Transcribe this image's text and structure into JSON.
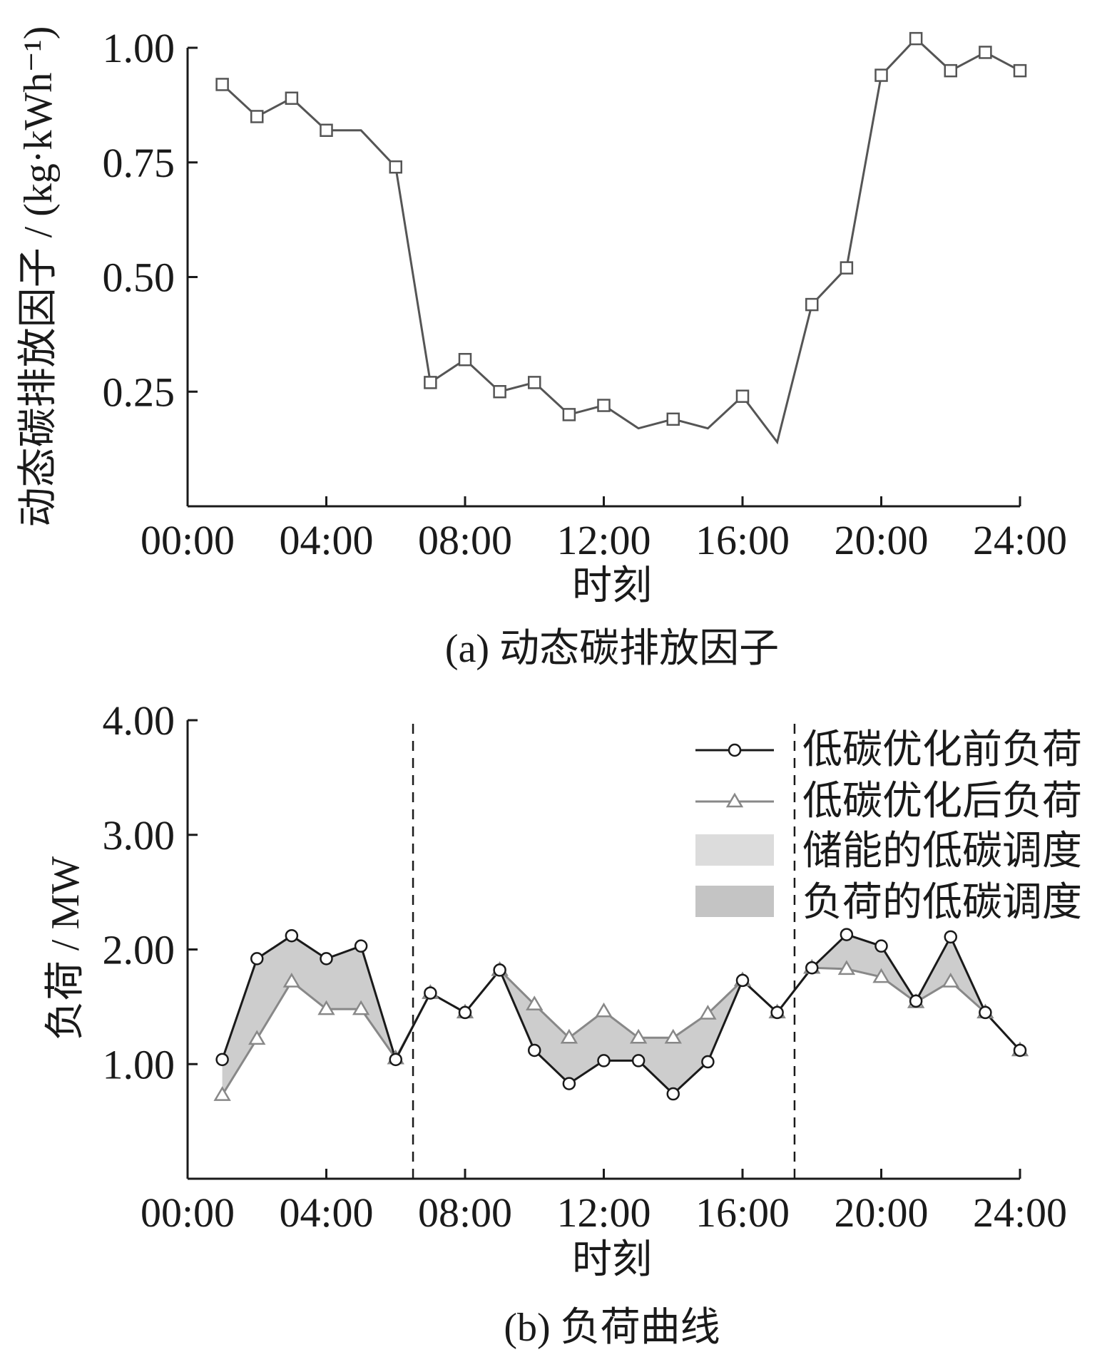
{
  "figure": {
    "panel_a_caption": "(a)  动态碳排放因子",
    "panel_b_caption": "(b)  负荷曲线"
  },
  "chart_data": [
    {
      "type": "line",
      "xlabel": "时刻",
      "ylabel": "动态碳排放因子 / (kg·kWh⁻¹)",
      "x_tick_labels": [
        "00:00",
        "04:00",
        "08:00",
        "12:00",
        "16:00",
        "20:00",
        "24:00"
      ],
      "y_tick_labels": [
        "0.25",
        "0.50",
        "0.75",
        "1.00"
      ],
      "xlim": [
        0,
        24
      ],
      "ylim": [
        0,
        1.0
      ],
      "grid": false,
      "series": [
        {
          "x": [
            1,
            2,
            3,
            4,
            5,
            6,
            7,
            8,
            9,
            10,
            11,
            12,
            13,
            14,
            15,
            16,
            17,
            18,
            19,
            20,
            21,
            22,
            23,
            24
          ],
          "values": [
            0.92,
            0.85,
            0.89,
            0.82,
            0.82,
            0.74,
            0.27,
            0.32,
            0.25,
            0.27,
            0.2,
            0.22,
            0.17,
            0.19,
            0.17,
            0.24,
            0.14,
            0.44,
            0.52,
            0.94,
            1.02,
            0.95,
            0.99,
            0.95
          ],
          "marker_at": [
            1,
            2,
            3,
            4,
            6,
            7,
            8,
            9,
            10,
            11,
            12,
            14,
            16,
            18,
            19,
            20,
            21,
            22,
            23,
            24
          ],
          "marker": "square",
          "color": "#555555"
        }
      ]
    },
    {
      "type": "line",
      "xlabel": "时刻",
      "ylabel": "负荷 / MW",
      "x_tick_labels": [
        "00:00",
        "04:00",
        "08:00",
        "12:00",
        "16:00",
        "20:00",
        "24:00"
      ],
      "y_tick_labels": [
        "1.00",
        "2.00",
        "3.00",
        "4.00"
      ],
      "xlim": [
        0,
        24
      ],
      "ylim": [
        0,
        4.0
      ],
      "grid": false,
      "legend_position": "top-right",
      "vertical_dashed_lines_x": [
        6.5,
        17.5
      ],
      "series": [
        {
          "name": "低碳优化前负荷",
          "marker": "circle",
          "color": "#1a1a1a",
          "x": [
            1,
            2,
            3,
            4,
            5,
            6,
            7,
            8,
            9,
            10,
            11,
            12,
            13,
            14,
            15,
            16,
            17,
            18,
            19,
            20,
            21,
            22,
            23,
            24
          ],
          "values": [
            1.04,
            1.92,
            2.12,
            1.92,
            2.03,
            1.04,
            1.62,
            1.45,
            1.82,
            1.12,
            0.83,
            1.03,
            1.03,
            0.74,
            1.02,
            1.73,
            1.45,
            1.84,
            2.13,
            2.03,
            1.55,
            2.11,
            1.45,
            1.12
          ]
        },
        {
          "name": "低碳优化后负荷",
          "marker": "triangle",
          "color": "#888888",
          "x": [
            1,
            2,
            3,
            4,
            5,
            6,
            7,
            8,
            9,
            10,
            11,
            12,
            13,
            14,
            15,
            16,
            17,
            18,
            19,
            20,
            21,
            22,
            23,
            24
          ],
          "values": [
            0.73,
            1.22,
            1.72,
            1.48,
            1.48,
            1.05,
            1.62,
            1.45,
            1.82,
            1.52,
            1.23,
            1.46,
            1.23,
            1.23,
            1.44,
            1.73,
            1.45,
            1.84,
            1.83,
            1.76,
            1.54,
            1.72,
            1.45,
            1.12
          ]
        }
      ],
      "legend_extra": [
        {
          "name": "储能的低碳调度",
          "color": "#dcdcdc"
        },
        {
          "name": "负荷的低碳调度",
          "color": "#c4c4c4"
        }
      ]
    }
  ]
}
